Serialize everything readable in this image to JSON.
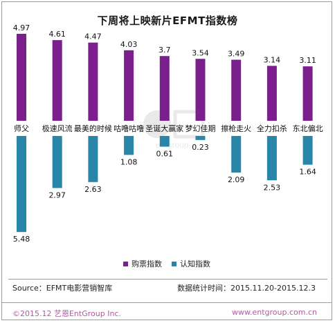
{
  "title": "下周将上映新片EFMT指数榜",
  "legend": {
    "purchase": "购票指数",
    "awareness": "认知指数"
  },
  "source": "Source：EFMT电影营销智库",
  "period": "数据统计时间：2015.11.20-2015.12.3",
  "copyright": "©2015.12 艺恩EntGroup Inc.",
  "website": "www.entgroup.com.cn",
  "colors": {
    "purchase": "#7a1f8c",
    "awareness": "#2a86a8",
    "accent": "#b05a9e"
  },
  "chart_data": {
    "type": "bar",
    "categories": [
      "师父",
      "极速风流",
      "最美的时候",
      "咕噜咕噜",
      "圣诞大赢家",
      "梦幻佳期",
      "擦枪走火",
      "全力扣杀",
      "东北偏北"
    ],
    "series": [
      {
        "name": "购票指数",
        "values": [
          4.97,
          4.61,
          4.47,
          4.03,
          3.7,
          3.54,
          3.49,
          3.14,
          3.11
        ]
      },
      {
        "name": "认知指数",
        "values": [
          5.48,
          2.97,
          2.63,
          1.08,
          0.61,
          0.23,
          2.09,
          2.53,
          1.64
        ]
      }
    ],
    "labels_purchase": [
      "4.97",
      "4.61",
      "4.47",
      "4.03",
      "3.7",
      "3.54",
      "3.49",
      "3.14",
      "3.11"
    ],
    "labels_awareness": [
      "5.48",
      "2.97",
      "2.63",
      "1.08",
      "0.61",
      "0.23",
      "2.09",
      "2.53",
      "1.64"
    ],
    "title": "下周将上映新片EFMT指数榜",
    "xlabel": "",
    "ylabel": "",
    "grid": false,
    "legend_position": "bottom"
  }
}
